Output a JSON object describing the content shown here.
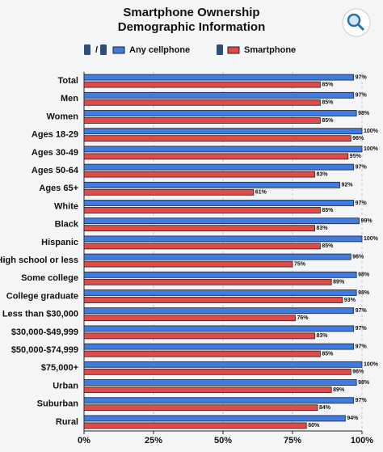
{
  "chart_data": {
    "type": "bar",
    "orientation": "horizontal",
    "title": [
      "Smartphone Ownership",
      "Demographic Information"
    ],
    "categories": [
      "Total",
      "Men",
      "Women",
      "Ages 18-29",
      "Ages 30-49",
      "Ages 50-64",
      "Ages 65+",
      "White",
      "Black",
      "Hispanic",
      "High school or less",
      "Some college",
      "College graduate",
      "Less than $30,000",
      "$30,000-$49,999",
      "$50,000-$74,999",
      "$75,000+",
      "Urban",
      "Suburban",
      "Rural"
    ],
    "series": [
      {
        "name": "Any cellphone",
        "color": "#3f7be0",
        "values": [
          97,
          97,
          98,
          100,
          100,
          97,
          92,
          97,
          99,
          100,
          96,
          98,
          98,
          97,
          97,
          97,
          100,
          98,
          97,
          94
        ],
        "value_labels": [
          "97%",
          "97%",
          "98%",
          "100%",
          "100%",
          "97%",
          "92%",
          "97%",
          "99%",
          "100%",
          "96%",
          "98%",
          "98%",
          "97%",
          "97%",
          "97%",
          "100%",
          "98%",
          "97%",
          "94%"
        ]
      },
      {
        "name": "Smartphone",
        "color": "#e04a4a",
        "values": [
          85,
          85,
          85,
          96,
          95,
          83,
          61,
          85,
          83,
          85,
          75,
          89,
          93,
          76,
          83,
          85,
          96,
          89,
          84,
          80
        ],
        "value_labels": [
          "85%",
          "85%",
          "85%",
          "96%",
          "95%",
          "83%",
          "61%",
          "85%",
          "83%",
          "85%",
          "75%",
          "89%",
          "93%",
          "76%",
          "83%",
          "85%",
          "96%",
          "89%",
          "84%",
          "80%"
        ]
      }
    ],
    "xlim": [
      0,
      100
    ],
    "xticks": [
      {
        "value": 0,
        "label": "0%"
      },
      {
        "value": 25,
        "label": "25%"
      },
      {
        "value": 50,
        "label": "50%"
      },
      {
        "value": 75,
        "label": "75%"
      },
      {
        "value": 100,
        "label": "100%"
      }
    ],
    "grid": true
  }
}
